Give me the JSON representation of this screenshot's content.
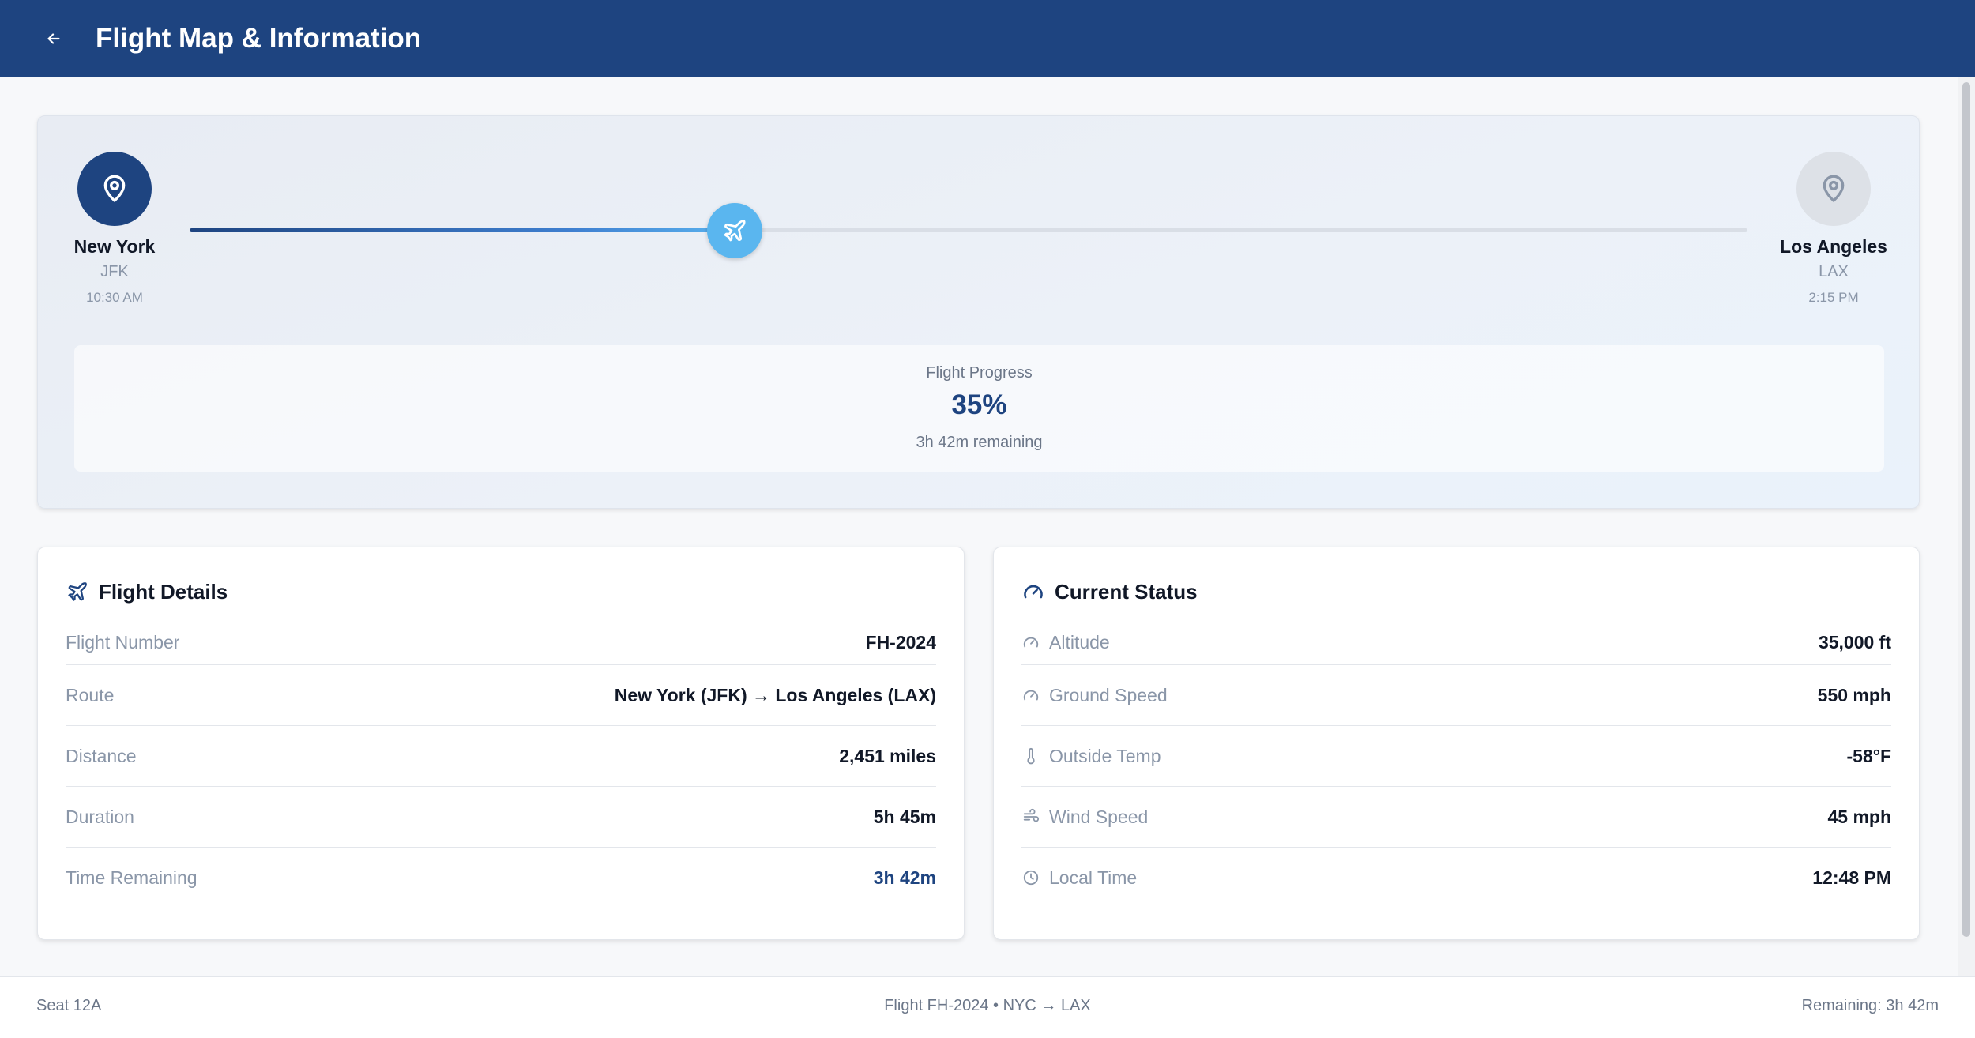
{
  "header": {
    "title": "Flight Map & Information",
    "back_icon": "arrow-left-icon",
    "color": "#1e4480"
  },
  "route": {
    "origin": {
      "city": "New York",
      "code": "JFK",
      "time": "10:30 AM",
      "icon": "map-pin-icon"
    },
    "destination": {
      "city": "Los Angeles",
      "code": "LAX",
      "time": "2:15 PM",
      "icon": "map-pin-icon"
    },
    "progress_fraction": 0.35,
    "plane_icon": "plane-icon"
  },
  "progress": {
    "label": "Flight Progress",
    "value": "35%",
    "remaining": "3h 42m remaining"
  },
  "flight_details": {
    "title": "Flight Details",
    "icon": "plane-icon",
    "rows": [
      {
        "label": "Flight Number",
        "value": "FH-2024"
      },
      {
        "label": "Route",
        "value": "New York (JFK) → Los Angeles (LAX)"
      },
      {
        "label": "Distance",
        "value": "2,451 miles"
      },
      {
        "label": "Duration",
        "value": "5h 45m"
      },
      {
        "label": "Time Remaining",
        "value": "3h 42m"
      }
    ]
  },
  "current_status": {
    "title": "Current Status",
    "icon": "gauge-icon",
    "rows": [
      {
        "label": "Altitude",
        "value": "35,000 ft",
        "icon": "gauge-icon"
      },
      {
        "label": "Ground Speed",
        "value": "550 mph",
        "icon": "gauge-icon"
      },
      {
        "label": "Outside Temp",
        "value": "-58°F",
        "icon": "thermometer-icon"
      },
      {
        "label": "Wind Speed",
        "value": "45 mph",
        "icon": "wind-icon"
      },
      {
        "label": "Local Time",
        "value": "12:48 PM",
        "icon": "clock-icon"
      }
    ]
  },
  "footer": {
    "seat": "Seat 12A",
    "flight": "Flight FH-2024 • NYC → LAX",
    "remaining": "Remaining: 3h 42m"
  }
}
